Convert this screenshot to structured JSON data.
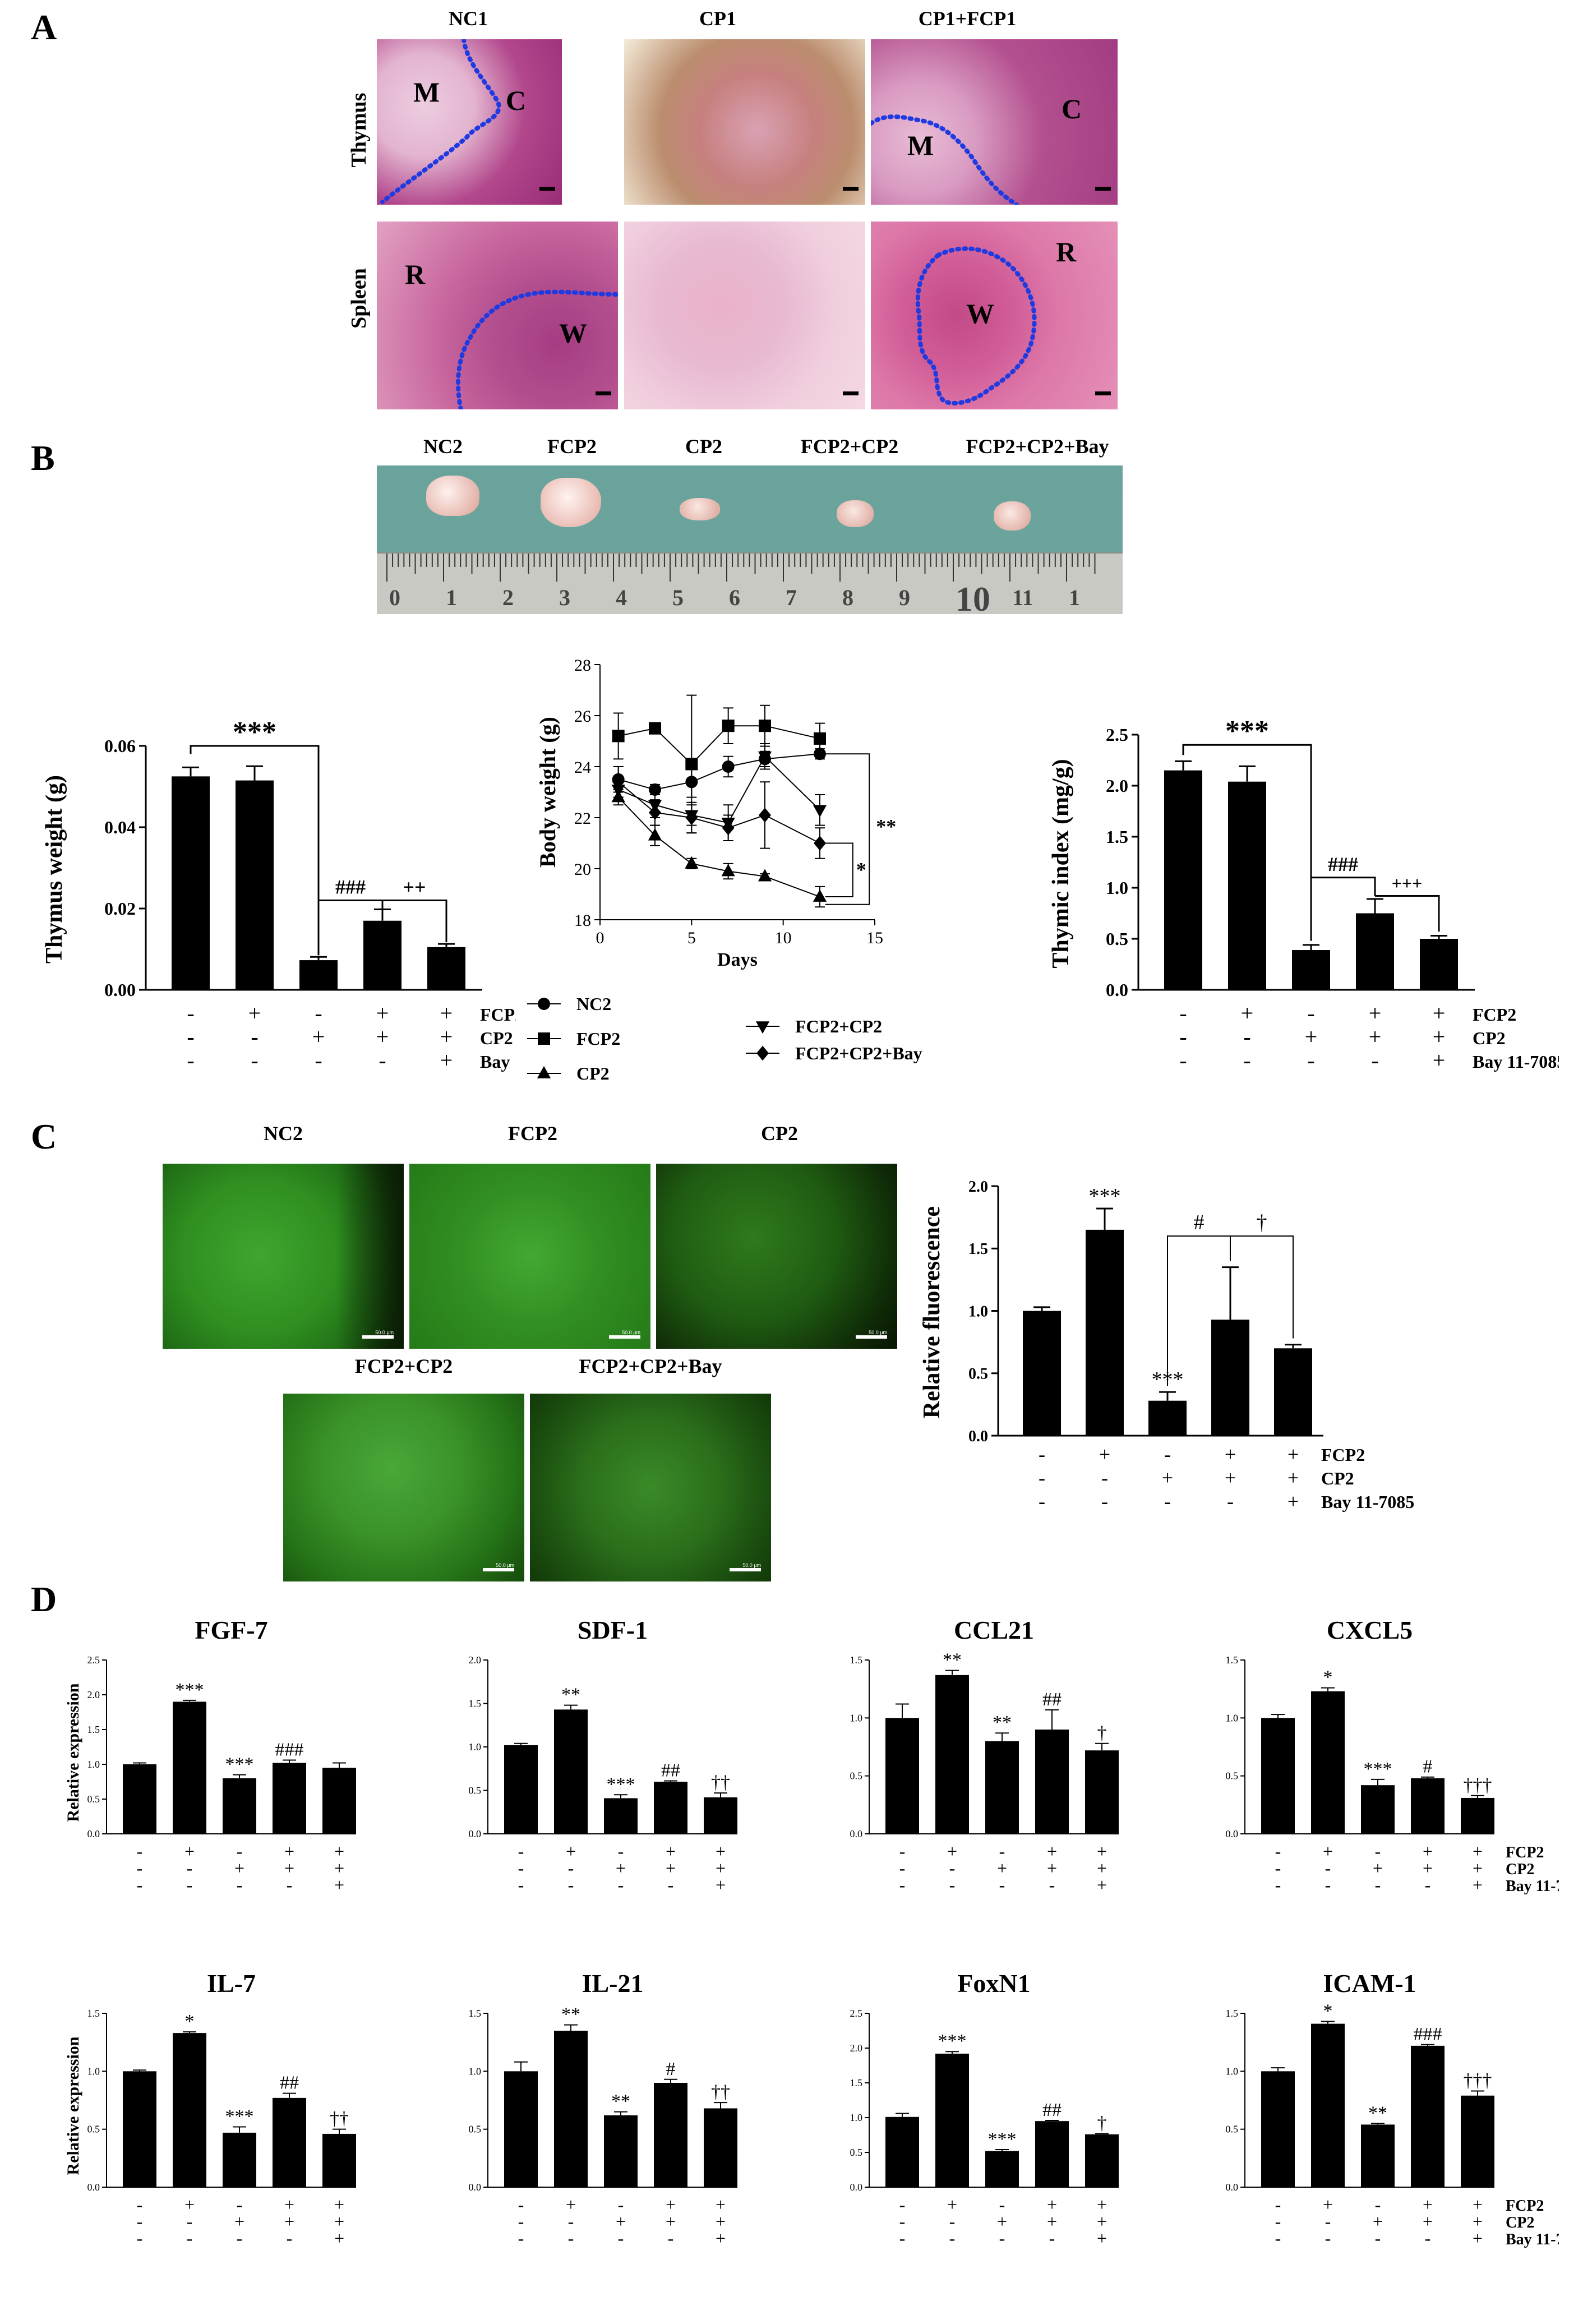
{
  "panels": {
    "A": "A",
    "B": "B",
    "C": "C",
    "D": "D"
  },
  "panelA": {
    "columns": [
      "NC1",
      "CP1",
      "CP1+FCP1"
    ],
    "rows": [
      "Thymus",
      "Spleen"
    ],
    "thymus_marks": [
      [
        "M",
        "C"
      ],
      [],
      [
        "M",
        "C"
      ]
    ],
    "spleen_marks": [
      [
        "R",
        "W"
      ],
      [],
      [
        "W",
        "R"
      ]
    ]
  },
  "panelB_photo": {
    "labels": [
      "NC2",
      "FCP2",
      "CP2",
      "FCP2+CP2",
      "FCP2+CP2+Bay"
    ],
    "ruler_numbers": [
      "0",
      "1",
      "2",
      "3",
      "4",
      "5",
      "6",
      "7",
      "8",
      "9",
      "10",
      "11",
      "1"
    ]
  },
  "panelB_charts": [
    {
      "type": "bar",
      "ylabel": "Thymus weight (g)",
      "ylim": [
        0,
        0.06
      ],
      "ticks": [
        "0.00",
        "0.02",
        "0.04",
        "0.06"
      ],
      "values": [
        0.0525,
        0.0515,
        0.0073,
        0.017,
        0.0105
      ],
      "errors": [
        0.0022,
        0.0035,
        0.0008,
        0.0028,
        0.0008
      ],
      "sig": [
        "***",
        "###",
        "++"
      ],
      "signs": {
        "FCP2": [
          "-",
          "+",
          "-",
          "+",
          "+"
        ],
        "CP2": [
          "-",
          "-",
          "+",
          "+",
          "+"
        ],
        "Bay 11-7085": [
          "-",
          "-",
          "-",
          "-",
          "+"
        ]
      },
      "row_labels": [
        "FCP2",
        "CP2",
        "Bay 11-7085"
      ]
    },
    {
      "type": "line",
      "ylabel": "Body weight (g)",
      "xlabel": "Days",
      "xlim": [
        0,
        15
      ],
      "ylim": [
        18,
        28
      ],
      "xticks": [
        "0",
        "5",
        "10",
        "15"
      ],
      "yticks": [
        "18",
        "20",
        "22",
        "24",
        "26",
        "28"
      ],
      "x": [
        1,
        3,
        5,
        7,
        9,
        12
      ],
      "series": [
        {
          "name": "NC2",
          "marker": "circle",
          "values": [
            23.5,
            23.1,
            23.4,
            24.0,
            24.3,
            24.5
          ],
          "errors": [
            0.5,
            0.2,
            0.6,
            0.4,
            0.3,
            0.2
          ]
        },
        {
          "name": "FCP2",
          "marker": "square",
          "values": [
            25.2,
            25.5,
            24.1,
            25.6,
            25.6,
            25.1
          ],
          "errors": [
            0.9,
            0.1,
            2.7,
            0.7,
            0.8,
            0.6
          ]
        },
        {
          "name": "CP2",
          "marker": "triangle-up",
          "values": [
            22.8,
            21.3,
            20.2,
            19.9,
            19.7,
            18.9
          ],
          "errors": [
            0.3,
            0.4,
            0.2,
            0.3,
            0.1,
            0.4
          ]
        },
        {
          "name": "FCP2+CP2",
          "marker": "triangle-down",
          "values": [
            23.1,
            22.5,
            22.1,
            21.8,
            24.4,
            22.3
          ],
          "errors": [
            0.3,
            0.5,
            0.4,
            0.7,
            0.5,
            0.6
          ]
        },
        {
          "name": "FCP2+CP2+Bay",
          "marker": "diamond",
          "values": [
            23.4,
            22.2,
            22.0,
            21.6,
            22.1,
            21.0
          ],
          "errors": [
            0.6,
            0.5,
            0.6,
            0.5,
            1.3,
            0.6
          ]
        }
      ],
      "sig": [
        "**",
        "*"
      ]
    },
    {
      "type": "bar",
      "ylabel": "Thymic index (mg/g)",
      "ylim": [
        0,
        2.5
      ],
      "ticks": [
        "0.0",
        "0.5",
        "1.0",
        "1.5",
        "2.0",
        "2.5"
      ],
      "values": [
        2.15,
        2.04,
        0.39,
        0.75,
        0.5
      ],
      "errors": [
        0.09,
        0.15,
        0.05,
        0.14,
        0.03
      ],
      "sig": [
        "***",
        "###",
        "+++"
      ],
      "signs": {
        "FCP2": [
          "-",
          "+",
          "-",
          "+",
          "+"
        ],
        "CP2": [
          "-",
          "-",
          "+",
          "+",
          "+"
        ],
        "Bay 11-7085": [
          "-",
          "-",
          "-",
          "-",
          "+"
        ]
      },
      "row_labels": [
        "FCP2",
        "CP2",
        "Bay 11-7085"
      ]
    }
  ],
  "panelC": {
    "image_labels": [
      "NC2",
      "FCP2",
      "CP2",
      "FCP2+CP2",
      "FCP2+CP2+Bay"
    ],
    "scale_text": "50.0 μm",
    "chart": {
      "type": "bar",
      "ylabel": "Relative fluorescence",
      "ylim": [
        0,
        2.0
      ],
      "ticks": [
        "0.0",
        "0.5",
        "1.0",
        "1.5",
        "2.0"
      ],
      "values": [
        1.0,
        1.65,
        0.28,
        0.93,
        0.7
      ],
      "errors": [
        0.03,
        0.17,
        0.07,
        0.42,
        0.03
      ],
      "bar_sig": [
        "",
        "***",
        "***",
        "",
        ""
      ],
      "bracket_sig": [
        "#",
        "†"
      ],
      "signs": {
        "FCP2": [
          "-",
          "+",
          "-",
          "+",
          "+"
        ],
        "CP2": [
          "-",
          "-",
          "+",
          "+",
          "+"
        ],
        "Bay 11-7085": [
          "-",
          "-",
          "-",
          "-",
          "+"
        ]
      },
      "row_labels": [
        "FCP2",
        "CP2",
        "Bay 11-7085"
      ]
    }
  },
  "panelD": {
    "ylabel": "Relative expression",
    "row_labels": [
      "FCP2",
      "CP2",
      "Bay 11-7085"
    ],
    "signs": {
      "FCP2": [
        "-",
        "+",
        "-",
        "+",
        "+"
      ],
      "CP2": [
        "-",
        "-",
        "+",
        "+",
        "+"
      ],
      "Bay 11-7085": [
        "-",
        "-",
        "-",
        "-",
        "+"
      ]
    },
    "charts": [
      {
        "title": "FGF-7",
        "ylim": [
          0,
          2.5
        ],
        "ticks": [
          "0.0",
          "0.5",
          "1.0",
          "1.5",
          "2.0",
          "2.5"
        ],
        "values": [
          1.0,
          1.9,
          0.8,
          1.02,
          0.95
        ],
        "errors": [
          0.02,
          0.02,
          0.05,
          0.04,
          0.07
        ],
        "sig": [
          "",
          "***",
          "***",
          "###",
          ""
        ]
      },
      {
        "title": "SDF-1",
        "ylim": [
          0,
          2.0
        ],
        "ticks": [
          "0.0",
          "0.5",
          "1.0",
          "1.5",
          "2.0"
        ],
        "values": [
          1.02,
          1.43,
          0.41,
          0.6,
          0.42
        ],
        "errors": [
          0.02,
          0.05,
          0.04,
          0.01,
          0.05
        ],
        "sig": [
          "",
          "**",
          "***",
          "##",
          "††"
        ]
      },
      {
        "title": "CCL21",
        "ylim": [
          0,
          1.5
        ],
        "ticks": [
          "0.0",
          "0.5",
          "1.0",
          "1.5"
        ],
        "values": [
          1.0,
          1.37,
          0.8,
          0.9,
          0.72
        ],
        "errors": [
          0.12,
          0.04,
          0.07,
          0.17,
          0.06
        ],
        "sig": [
          "",
          "**",
          "**",
          "##",
          "†"
        ]
      },
      {
        "title": "CXCL5",
        "ylim": [
          0,
          1.5
        ],
        "ticks": [
          "0.0",
          "0.5",
          "1.0",
          "1.5"
        ],
        "values": [
          1.0,
          1.23,
          0.42,
          0.48,
          0.31
        ],
        "errors": [
          0.03,
          0.03,
          0.05,
          0.01,
          0.02
        ],
        "sig": [
          "",
          "*",
          "***",
          "#",
          "†††"
        ]
      },
      {
        "title": "IL-7",
        "ylim": [
          0,
          1.5
        ],
        "ticks": [
          "0.0",
          "0.5",
          "1.0",
          "1.5"
        ],
        "values": [
          1.0,
          1.33,
          0.47,
          0.77,
          0.46
        ],
        "errors": [
          0.01,
          0.01,
          0.05,
          0.04,
          0.04
        ],
        "sig": [
          "",
          "*",
          "***",
          "##",
          "††"
        ]
      },
      {
        "title": "IL-21",
        "ylim": [
          0,
          1.5
        ],
        "ticks": [
          "0.0",
          "0.5",
          "1.0",
          "1.5"
        ],
        "values": [
          1.0,
          1.35,
          0.62,
          0.9,
          0.68
        ],
        "errors": [
          0.08,
          0.05,
          0.03,
          0.03,
          0.05
        ],
        "sig": [
          "",
          "**",
          "**",
          "#",
          "††"
        ]
      },
      {
        "title": "FoxN1",
        "ylim": [
          0,
          2.5
        ],
        "ticks": [
          "0.0",
          "0.5",
          "1.0",
          "1.5",
          "2.0",
          "2.5"
        ],
        "values": [
          1.01,
          1.92,
          0.52,
          0.95,
          0.76
        ],
        "errors": [
          0.05,
          0.03,
          0.02,
          0.01,
          0.01
        ],
        "sig": [
          "",
          "***",
          "***",
          "##",
          "†"
        ]
      },
      {
        "title": "ICAM-1",
        "ylim": [
          0,
          1.5
        ],
        "ticks": [
          "0.0",
          "0.5",
          "1.0",
          "1.5"
        ],
        "values": [
          1.0,
          1.41,
          0.54,
          1.22,
          0.79
        ],
        "errors": [
          0.03,
          0.02,
          0.01,
          0.01,
          0.04
        ],
        "sig": [
          "",
          "*",
          "**",
          "###",
          "†††"
        ]
      }
    ]
  },
  "colors": {
    "bar": "#000000",
    "photo_bg": "#6aa39b",
    "ruler": "#c9c9c4",
    "micro_pink": "#c4639b",
    "micro_light": "#e8b9d2",
    "fluo_green": "#2f8f20",
    "fluo_dark": "#0d2a05",
    "dotted": "#1f3ae0"
  }
}
